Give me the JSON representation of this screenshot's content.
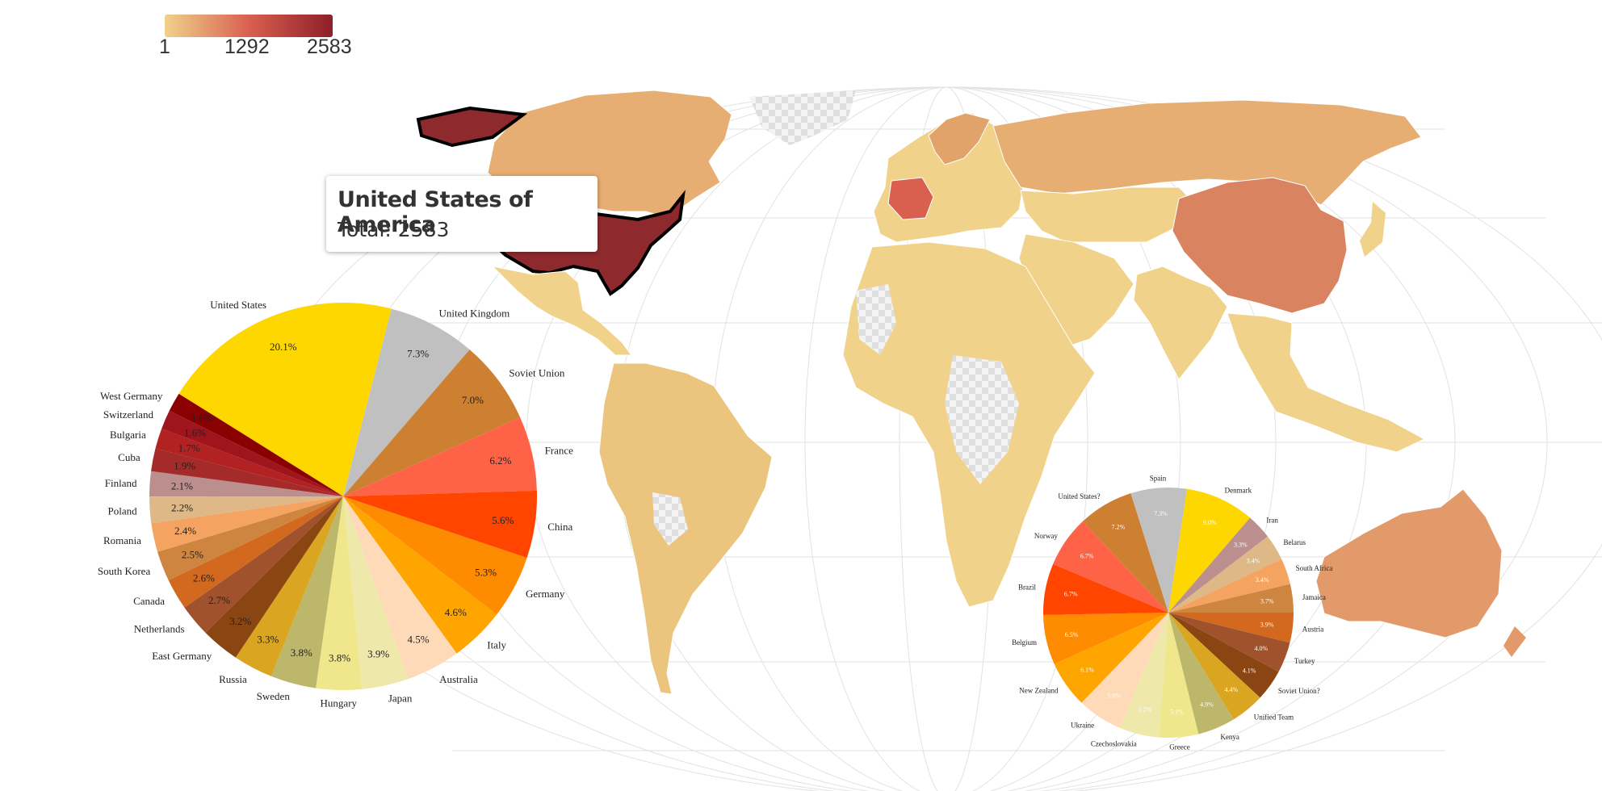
{
  "legend": {
    "colors": [
      "#f0d28a",
      "#d9604f",
      "#8e1e2a"
    ],
    "min_label": "1",
    "mid_label": "1292",
    "max_label": "2583"
  },
  "tooltip": {
    "country": "United States of America",
    "total_text": "Total: 2583"
  },
  "map": {
    "type": "choropleth",
    "highlighted_country": "United States of America",
    "highlight_color": "#8e2a2e",
    "ocean_color": "#ffffff",
    "no_data_pattern": "checkerboard"
  },
  "chart_data": [
    {
      "type": "pie",
      "labels": [
        "United States",
        "United Kingdom",
        "Soviet Union",
        "France",
        "China",
        "Germany",
        "Italy",
        "Australia",
        "Japan",
        "Hungary",
        "Sweden",
        "Russia",
        "East Germany",
        "Netherlands",
        "Canada",
        "South Korea",
        "Romania",
        "Poland",
        "Finland",
        "Cuba",
        "Bulgaria",
        "Switzerland",
        "West Germany"
      ],
      "values": [
        20.1,
        7.3,
        7.0,
        6.2,
        5.6,
        5.3,
        4.6,
        4.5,
        3.9,
        3.8,
        3.8,
        3.3,
        3.2,
        2.7,
        2.6,
        2.5,
        2.4,
        2.2,
        2.1,
        1.9,
        1.7,
        1.6,
        1.6
      ],
      "value_labels": [
        "20.1%",
        "7.3%",
        "7.0%",
        "6.2%",
        "5.6%",
        "5.3%",
        "4.6%",
        "4.5%",
        "3.9%",
        "3.8%",
        "3.8%",
        "3.3%",
        "3.2%",
        "2.7%",
        "2.6%",
        "2.5%",
        "2.4%",
        "2.2%",
        "2.1%",
        "1.9%",
        "1.7%",
        "1.6%",
        "1.6%"
      ],
      "colors": [
        "#ffd700",
        "#c0c0c0",
        "#cd7f32",
        "#ff6347",
        "#ff4500",
        "#ff8c00",
        "#ffa500",
        "#ffdab9",
        "#eee8aa",
        "#f0e68c",
        "#bdb76b",
        "#daa520",
        "#8b4513",
        "#a0522d",
        "#d2691e",
        "#cd853f",
        "#f4a460",
        "#deb887",
        "#bc8f8f",
        "#a52a2a",
        "#b22222",
        "#a0141e",
        "#8b0000"
      ],
      "start_angle_deg": 212
    },
    {
      "type": "pie",
      "labels": [
        "Austria",
        "Turkey",
        "Soviet Union?",
        "Unified Team",
        "Kenya",
        "Greece",
        "Czechoslovakia",
        "Ukraine",
        "New Zealand",
        "Belgium",
        "Brazil",
        "Norway",
        "United States?",
        "Spain",
        "Denmark",
        "Iran",
        "Belarus",
        "South Africa",
        "Jamaica"
      ],
      "values": [
        3.9,
        4.0,
        4.1,
        4.4,
        4.9,
        5.1,
        5.2,
        5.9,
        6.1,
        6.5,
        6.7,
        6.7,
        7.2,
        7.3,
        9.0,
        3.3,
        3.4,
        3.4,
        3.7
      ],
      "value_labels": [
        "3.9%",
        "4.0%",
        "4.1%",
        "4.4%",
        "4.9%",
        "5.1%",
        "5.2%",
        "5.9%",
        "6.1%",
        "6.5%",
        "6.7%",
        "6.7%",
        "7.2%",
        "7.3%",
        "9.0%",
        "3.3%",
        "3.4%",
        "3.4%",
        "3.7%"
      ],
      "colors": [
        "#d2691e",
        "#a0522d",
        "#8b4513",
        "#daa520",
        "#bdb76b",
        "#f0e68c",
        "#eee8aa",
        "#ffdab9",
        "#ffa500",
        "#ff8c00",
        "#ff4500",
        "#ff6347",
        "#cd7f32",
        "#c0c0c0",
        "#ffd700",
        "#bc8f8f",
        "#deb887",
        "#f4a460",
        "#cd853f"
      ],
      "start_angle_deg": 0
    }
  ]
}
